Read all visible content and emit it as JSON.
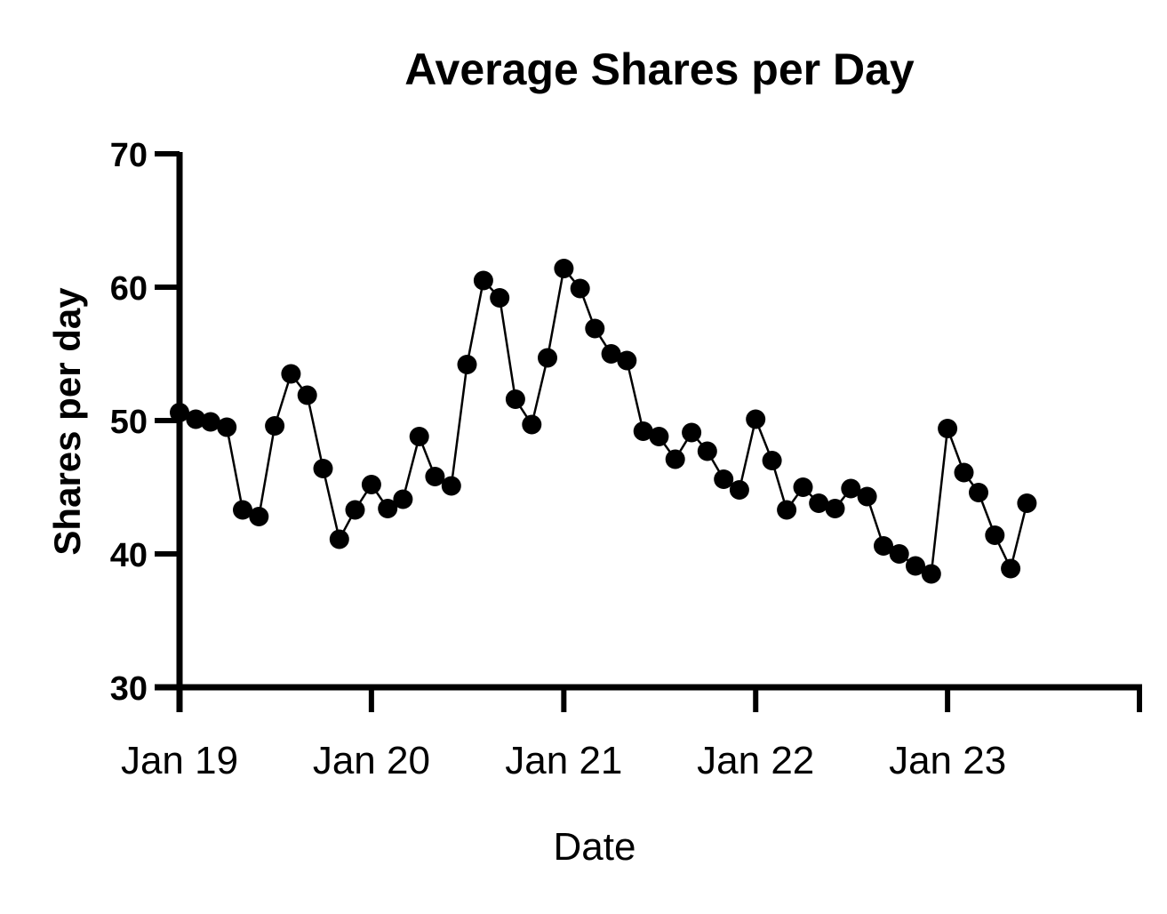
{
  "chart_data": {
    "type": "line",
    "title": "Average Shares per Day",
    "xlabel": "Date",
    "ylabel": "Shares per day",
    "ylim": [
      30,
      70
    ],
    "yticks": [
      30,
      40,
      50,
      60,
      70
    ],
    "xlim": [
      "2019-01-01",
      "2024-01-01"
    ],
    "xticks": [
      {
        "date": "2019-01-01",
        "label": "Jan 19"
      },
      {
        "date": "2020-01-01",
        "label": "Jan 20"
      },
      {
        "date": "2021-01-01",
        "label": "Jan 21"
      },
      {
        "date": "2022-01-01",
        "label": "Jan 22"
      },
      {
        "date": "2023-01-01",
        "label": "Jan 23"
      },
      {
        "date": "2024-01-01",
        "label": ""
      }
    ],
    "grid": false,
    "legend": "none",
    "marker": "circle",
    "color": "#000000",
    "series": [
      {
        "x": [
          "2019-01",
          "2019-02",
          "2019-03",
          "2019-04",
          "2019-05",
          "2019-06",
          "2019-07",
          "2019-08",
          "2019-09",
          "2019-10",
          "2019-11",
          "2019-12",
          "2020-01",
          "2020-02",
          "2020-03",
          "2020-04",
          "2020-05",
          "2020-06",
          "2020-07",
          "2020-08",
          "2020-09",
          "2020-10",
          "2020-11",
          "2020-12",
          "2021-01",
          "2021-02",
          "2021-03",
          "2021-04",
          "2021-05",
          "2021-06",
          "2021-07",
          "2021-08",
          "2021-09",
          "2021-10",
          "2021-11",
          "2021-12",
          "2022-01",
          "2022-02",
          "2022-03",
          "2022-04",
          "2022-05",
          "2022-06",
          "2022-07",
          "2022-08",
          "2022-09",
          "2022-10",
          "2022-11",
          "2022-12",
          "2023-01",
          "2023-02",
          "2023-03",
          "2023-04",
          "2023-05",
          "2023-06"
        ],
        "y": [
          50.6,
          50.1,
          49.9,
          49.5,
          43.3,
          42.8,
          49.6,
          53.5,
          51.9,
          46.4,
          41.1,
          43.3,
          45.2,
          43.4,
          44.1,
          48.8,
          45.8,
          45.1,
          54.2,
          60.5,
          59.2,
          51.6,
          49.7,
          54.7,
          61.4,
          59.9,
          56.9,
          55.0,
          54.5,
          49.2,
          48.8,
          47.1,
          49.1,
          47.7,
          45.6,
          44.8,
          50.1,
          47.0,
          43.3,
          45.0,
          43.8,
          43.4,
          44.9,
          44.3,
          40.6,
          40.0,
          39.1,
          38.5,
          49.4,
          46.1,
          44.6,
          41.4,
          38.9,
          43.8
        ]
      }
    ]
  }
}
